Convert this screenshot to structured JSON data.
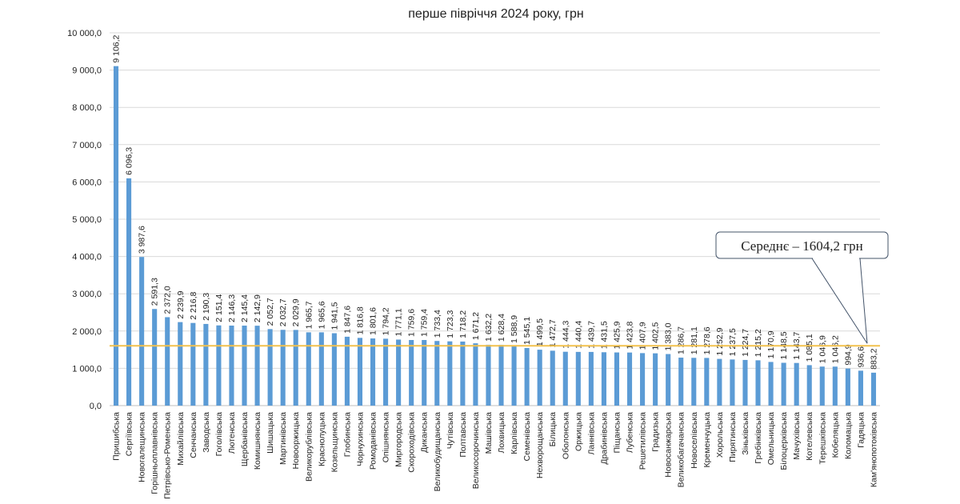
{
  "chart_data": {
    "type": "bar",
    "title": "перше півріччя 2024 року, грн",
    "xlabel": "",
    "ylabel": "",
    "ylim": [
      0,
      10000
    ],
    "yticks": [
      "0,0",
      "1 000,0",
      "2 000,0",
      "3 000,0",
      "4 000,0",
      "5 000,0",
      "6 000,0",
      "7 000,0",
      "8 000,0",
      "9 000,0",
      "10 000,0"
    ],
    "grid": true,
    "categories": [
      "Пришибська",
      "Сергіївська",
      "Новогалещинська",
      "Горішньоплавнівська",
      "Петрівсько-Роменська",
      "Михайлівська",
      "Сенчанська",
      "Заводська",
      "Гоголівська",
      "Лютенська",
      "Щербанівська",
      "Комишнянська",
      "Шишацька",
      "Мартинівська",
      "Новооржицька",
      "Великорублівська",
      "Краснолуцька",
      "Козельщинська",
      "Глобинська",
      "Чорнухинська",
      "Ромоданівська",
      "Опішнянська",
      "Миргородська",
      "Скороходівська",
      "Диканська",
      "Великобудищанська",
      "Чутівська",
      "Полтавська",
      "Великосорочинська",
      "Машівська",
      "Лохвицька",
      "Карлівська",
      "Семенівська",
      "Нехворощанська",
      "Білицька",
      "Оболонська",
      "Оржицька",
      "Ланнівська",
      "Драбинівська",
      "Піщанська",
      "Лубенська",
      "Решетилівська",
      "Градизька",
      "Новосанжарська",
      "Великобагачанська",
      "Новоселівська",
      "Кременчуцька",
      "Хорольська",
      "Пирятинська",
      "Зіньківська",
      "Гребінківська",
      "Омельницька",
      "Білоцерківська",
      "Мачухівська",
      "Котелевська",
      "Терешківська",
      "Кобеляцька",
      "Коломацька",
      "Гадяцька",
      "Кам'янопотоківська"
    ],
    "values": [
      9106.2,
      6096.3,
      3987.6,
      2591.3,
      2372.0,
      2239.9,
      2216.8,
      2190.3,
      2151.4,
      2146.3,
      2145.4,
      2142.9,
      2052.7,
      2032.7,
      2029.9,
      1965.7,
      1965.6,
      1941.5,
      1847.6,
      1816.8,
      1801.6,
      1794.2,
      1771.1,
      1759.6,
      1759.4,
      1733.4,
      1723.3,
      1718.2,
      1671.2,
      1632.2,
      1628.4,
      1588.9,
      1545.1,
      1499.5,
      1472.7,
      1444.3,
      1440.4,
      1439.7,
      1431.5,
      1425.9,
      1423.8,
      1407.9,
      1402.5,
      1383.0,
      1286.7,
      1281.1,
      1278.6,
      1252.9,
      1237.5,
      1224.7,
      1215.2,
      1170.9,
      1148.5,
      1143.7,
      1085.1,
      1046.9,
      1046.2,
      994.9,
      936.6,
      883.2
    ],
    "value_labels": [
      "9 106,2",
      "6 096,3",
      "3 987,6",
      "2 591,3",
      "2 372,0",
      "2 239,9",
      "2 216,8",
      "2 190,3",
      "2 151,4",
      "2 146,3",
      "2 145,4",
      "2 142,9",
      "2 052,7",
      "2 032,7",
      "2 029,9",
      "1 965,7",
      "1 965,6",
      "1 941,5",
      "1 847,6",
      "1 816,8",
      "1 801,6",
      "1 794,2",
      "1 771,1",
      "1 759,6",
      "1 759,4",
      "1 733,4",
      "1 723,3",
      "1 718,2",
      "1 671,2",
      "1 632,2",
      "1 628,4",
      "1 588,9",
      "1 545,1",
      "1 499,5",
      "1 472,7",
      "1 444,3",
      "1 440,4",
      "1 439,7",
      "1 431,5",
      "1 425,9",
      "1 423,8",
      "1 407,9",
      "1 402,5",
      "1 383,0",
      "1 286,7",
      "1 281,1",
      "1 278,6",
      "1 252,9",
      "1 237,5",
      "1 224,7",
      "1 215,2",
      "1 170,9",
      "1 148,5",
      "1 143,7",
      "1 085,1",
      "1 046,9",
      "1 046,2",
      "994,9",
      "936,6",
      "883,2"
    ],
    "average_line": {
      "value": 1604.2,
      "label": "Середнє – 1604,2 грн"
    },
    "colors": {
      "bar": "#5b9bd5",
      "average_line": "#f2c14e",
      "grid": "#d9d9d9",
      "callout_border": "#44546a"
    }
  }
}
